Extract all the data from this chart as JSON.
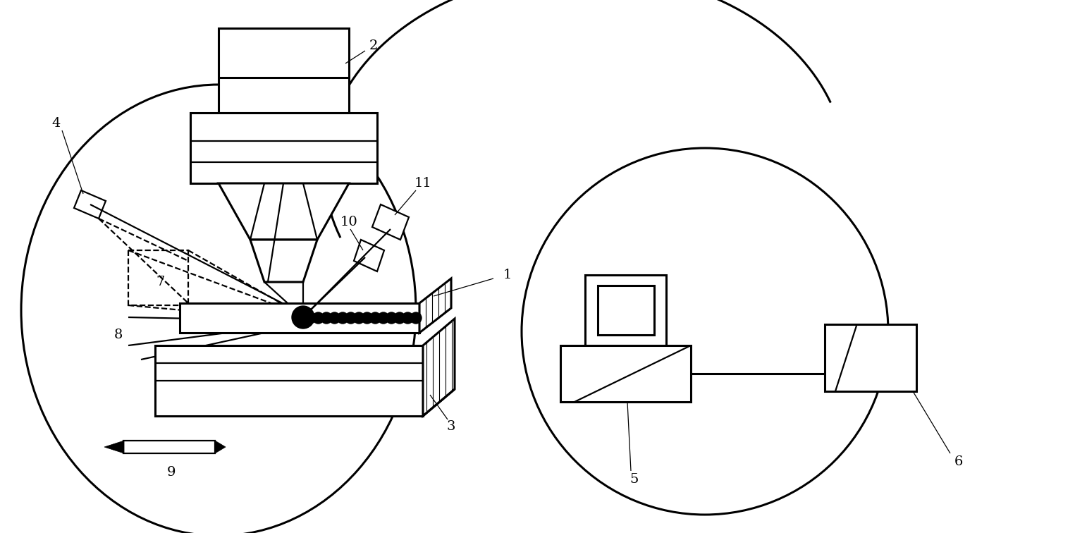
{
  "bg": "#ffffff",
  "fig_w": 15.25,
  "fig_h": 7.56,
  "dpi": 100,
  "lw": 1.6,
  "lw2": 2.2,
  "fs": 14
}
